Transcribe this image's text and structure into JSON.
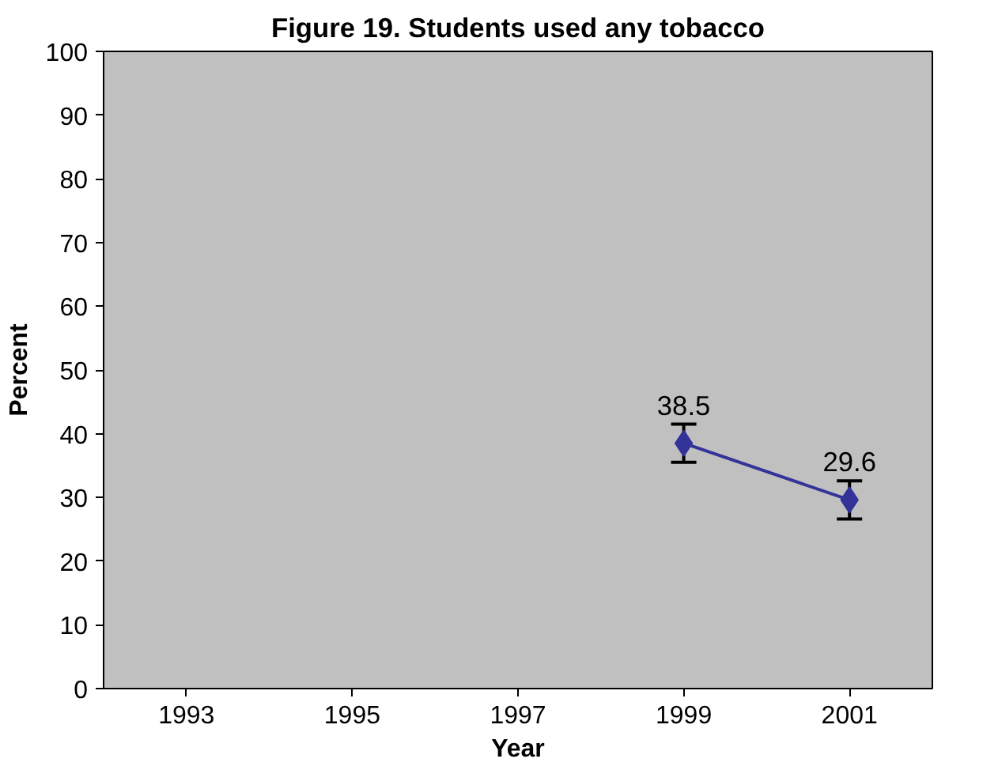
{
  "chart_data": {
    "type": "line",
    "title": "Figure 19. Students used any tobacco",
    "xlabel": "Year",
    "ylabel": "Percent",
    "categories": [
      "1993",
      "1995",
      "1997",
      "1999",
      "2001"
    ],
    "series": [
      {
        "color": "#333399",
        "values": [
          null,
          null,
          null,
          38.5,
          29.6
        ],
        "errors": [
          null,
          null,
          null,
          3,
          3
        ]
      }
    ],
    "ylim": [
      0,
      100
    ],
    "yticks": [
      0,
      10,
      20,
      30,
      40,
      50,
      60,
      70,
      80,
      90,
      100
    ],
    "data_labels": true,
    "marker": "diamond",
    "grid": false
  }
}
